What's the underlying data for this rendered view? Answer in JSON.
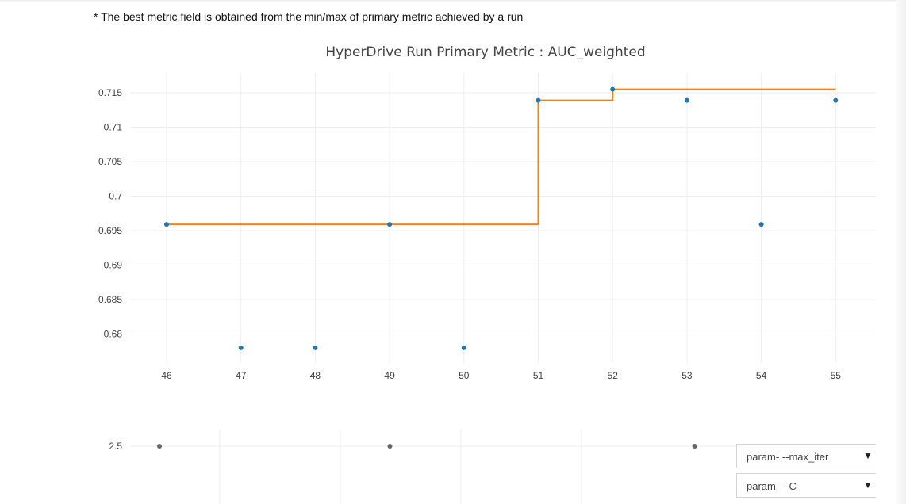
{
  "note": "* The best metric field is obtained from the min/max of primary metric achieved by a run",
  "dropdowns": [
    {
      "selected": "param- --max_iter",
      "icon": "triangle-down-icon"
    },
    {
      "selected": "param- --C",
      "icon": "triangle-down-icon"
    }
  ],
  "colors": {
    "best_line": "#ff7f0e",
    "run_points": "#1f77b4",
    "param_points": "#666666",
    "grid": "#eeeeee"
  },
  "chart_data": [
    {
      "type": "scatter",
      "title": "HyperDrive Run Primary Metric : AUC_weighted",
      "xlabel": "",
      "ylabel": "",
      "xticks": [
        "46",
        "47",
        "48",
        "49",
        "50",
        "51",
        "52",
        "53",
        "54",
        "55"
      ],
      "yticks": [
        "0.715",
        "0.71",
        "0.705",
        "0.7",
        "0.695",
        "0.69",
        "0.685",
        "0.68"
      ],
      "xlim": [
        46,
        55
      ],
      "ylim": [
        0.678,
        0.7155
      ],
      "grid": true,
      "series": [
        {
          "mode": "markers",
          "x": [
            46,
            47,
            48,
            49,
            50,
            51,
            52,
            53,
            54,
            55
          ],
          "y": [
            0.6959,
            0.678,
            0.678,
            0.6959,
            0.678,
            0.7139,
            0.7155,
            0.7139,
            0.6959,
            0.7139
          ]
        },
        {
          "mode": "step",
          "x": [
            46,
            47,
            48,
            49,
            50,
            51,
            52,
            53,
            54,
            55
          ],
          "y": [
            0.6959,
            0.6959,
            0.6959,
            0.6959,
            0.6959,
            0.7139,
            0.7155,
            0.7155,
            0.7155,
            0.7155
          ]
        }
      ]
    },
    {
      "type": "scatter",
      "title": "",
      "yticks": [
        "2.5"
      ],
      "ylim": [
        2,
        3
      ],
      "grid": true,
      "series": [
        {
          "mode": "markers",
          "x": [
            46,
            49.1,
            53.2
          ],
          "y": [
            2.5,
            2.5,
            2.5
          ]
        }
      ]
    }
  ]
}
